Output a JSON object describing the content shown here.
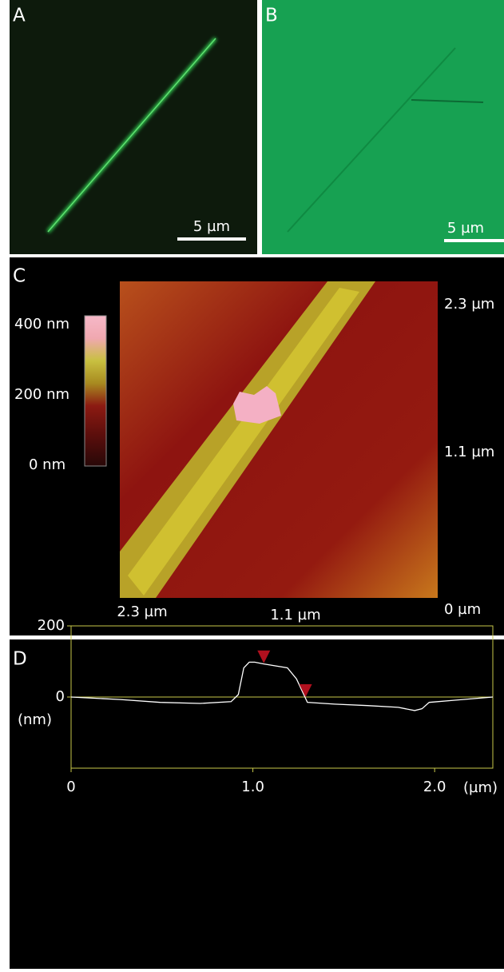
{
  "panels": {
    "a": {
      "label": "A",
      "scale_bar": "5 µm"
    },
    "b": {
      "label": "B",
      "scale_bar": "5 µm"
    },
    "c": {
      "label": "C",
      "colorbar_labels": [
        "400 nm",
        "200 nm",
        "0 nm"
      ],
      "right_labels": [
        "2.3 µm",
        "1.1 µm",
        "0 µm"
      ],
      "bottom_labels": [
        "2.3 µm",
        "1.1 µm"
      ]
    }
  },
  "chart_data": {
    "type": "line",
    "label": "D",
    "x": [
      0,
      0.27,
      0.49,
      0.71,
      0.88,
      0.92,
      0.95,
      0.98,
      1.01,
      1.06,
      1.19,
      1.24,
      1.28,
      1.3,
      1.45,
      1.63,
      1.8,
      1.84,
      1.89,
      1.93,
      1.97,
      2.11,
      2.32
    ],
    "series": [
      {
        "color": "#ffffff",
        "values": [
          0,
          -7,
          -15,
          -18,
          -13,
          7,
          82,
          98,
          98,
          93,
          82,
          51,
          7,
          -15,
          -20,
          -24,
          -29,
          -33,
          -38,
          -33,
          -15,
          -9,
          0
        ]
      }
    ],
    "markers": {
      "color": "#b0101e",
      "x": [
        1.06,
        1.29
      ],
      "values": [
        95,
        0
      ]
    },
    "xlim": [
      0,
      2.32
    ],
    "ylim": [
      -200,
      200
    ],
    "xticks": [
      0,
      {
        "value": 1,
        "label": "1.0"
      },
      {
        "value": 2,
        "label": "2.0"
      }
    ],
    "yticks": [
      0,
      200
    ],
    "x_axis_label": "(µm)",
    "y_axis_label": "(nm)",
    "axis_color": "#c8c84a"
  }
}
